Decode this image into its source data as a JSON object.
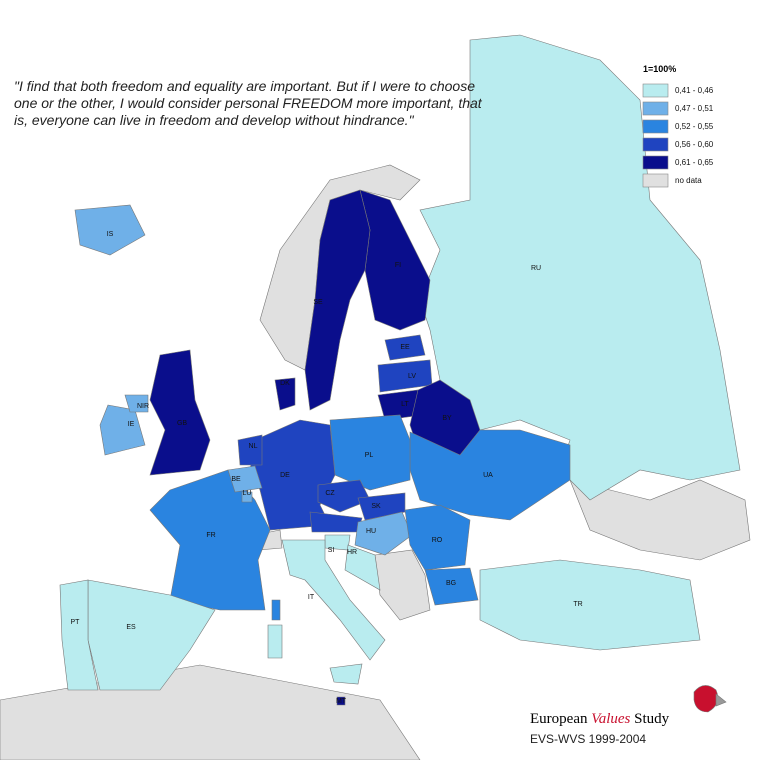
{
  "quote": "\"I find that both freedom and equality are important. But if I were to choose one or the other, I would consider personal FREEDOM more important, that is, everyone can live in freedom and develop without hindrance.\"",
  "legend": {
    "title": "1=100%",
    "items": [
      {
        "label": "0,41 - 0,46",
        "color": "#b9ecef"
      },
      {
        "label": "0,47 - 0,51",
        "color": "#6fb0e8"
      },
      {
        "label": "0,52 - 0,55",
        "color": "#2a84e0"
      },
      {
        "label": "0,56 - 0,60",
        "color": "#1f44c0"
      },
      {
        "label": "0,61 - 0,65",
        "color": "#0a0e8c"
      },
      {
        "label": "no data",
        "color": "#e0e0e0"
      }
    ]
  },
  "countries": [
    {
      "label": "RU",
      "color": "#b9ecef"
    },
    {
      "label": "FI",
      "color": "#0a0e8c"
    },
    {
      "label": "SE",
      "color": "#0a0e8c"
    },
    {
      "label": "EE",
      "color": "#1f44c0"
    },
    {
      "label": "LV",
      "color": "#1f44c0"
    },
    {
      "label": "LT",
      "color": "#0a0e8c"
    },
    {
      "label": "BY",
      "color": "#0a0e8c"
    },
    {
      "label": "UA",
      "color": "#2a84e0"
    },
    {
      "label": "PL",
      "color": "#2a84e0"
    },
    {
      "label": "DE",
      "color": "#1f44c0"
    },
    {
      "label": "CZ",
      "color": "#1f44c0"
    },
    {
      "label": "SK",
      "color": "#1f44c0"
    },
    {
      "label": "HU",
      "color": "#6fb0e8"
    },
    {
      "label": "RO",
      "color": "#2a84e0"
    },
    {
      "label": "BG",
      "color": "#2a84e0"
    },
    {
      "label": "SI",
      "color": "#b9ecef"
    },
    {
      "label": "HR",
      "color": "#b9ecef"
    },
    {
      "label": "IT",
      "color": "#b9ecef"
    },
    {
      "label": "FR",
      "color": "#2a84e0"
    },
    {
      "label": "BE",
      "color": "#6fb0e8"
    },
    {
      "label": "NL",
      "color": "#1f44c0"
    },
    {
      "label": "LU",
      "color": "#6fb0e8"
    },
    {
      "label": "ES",
      "color": "#b9ecef"
    },
    {
      "label": "PT",
      "color": "#b9ecef"
    },
    {
      "label": "GB",
      "color": "#0a0e8c"
    },
    {
      "label": "IE",
      "color": "#6fb0e8"
    },
    {
      "label": "NIR",
      "color": "#6fb0e8"
    },
    {
      "label": "IS",
      "color": "#6fb0e8"
    },
    {
      "label": "DK",
      "color": "#0a0e8c"
    },
    {
      "label": "TR",
      "color": "#b9ecef"
    },
    {
      "label": "MT",
      "color": "#0a0e8c"
    }
  ],
  "footer": {
    "brand_1": "European",
    "brand_2": "Values",
    "brand_3": "Study",
    "source": "EVS-WVS 1999-2004"
  }
}
